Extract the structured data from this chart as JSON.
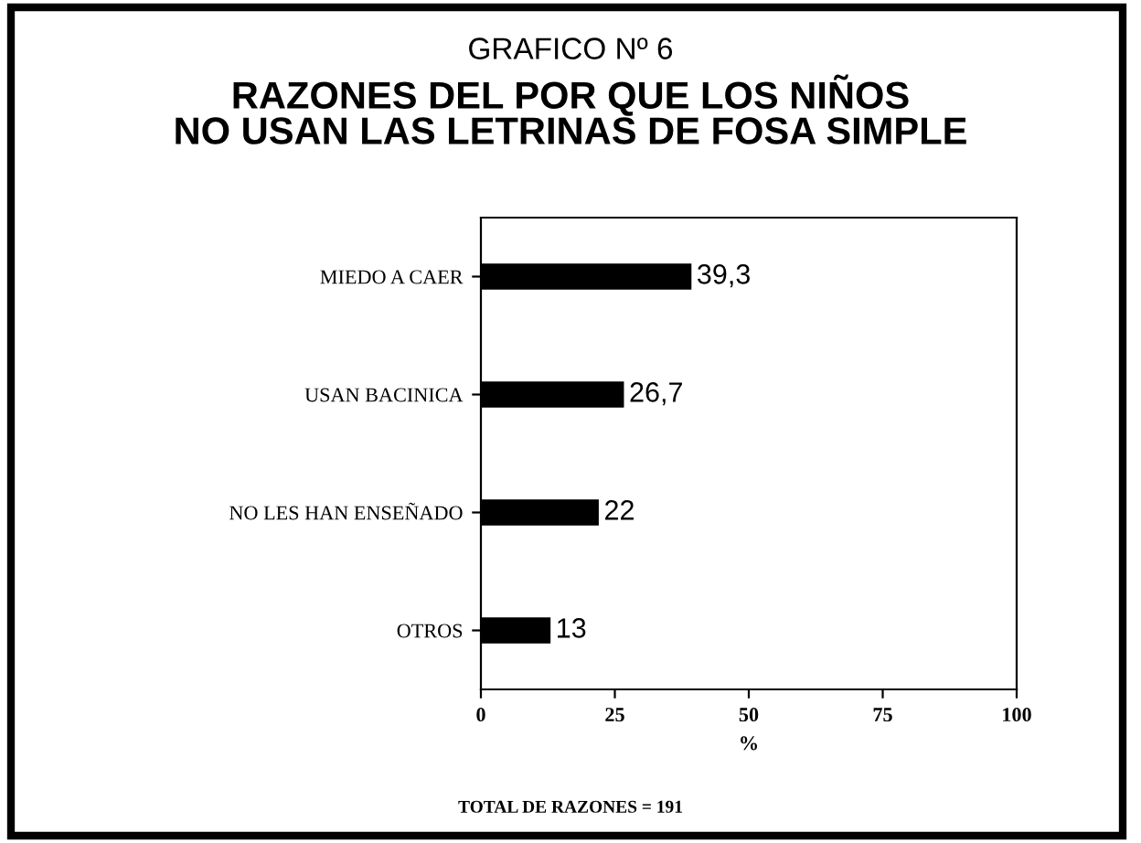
{
  "chart_data": {
    "type": "bar",
    "orientation": "horizontal",
    "title": "GRAFICO Nº 6",
    "subtitle": "RAZONES DEL POR QUE LOS NIÑOS\nNO USAN LAS LETRINAS DE FOSA SIMPLE",
    "categories": [
      "MIEDO A CAER",
      "USAN BACINICA",
      "NO LES HAN ENSEÑADO",
      "OTROS"
    ],
    "values": [
      39.3,
      26.7,
      22,
      13
    ],
    "value_labels": [
      "39,3",
      "26,7",
      "22",
      "13"
    ],
    "color": "#000000",
    "xlim": [
      0,
      100
    ],
    "xticks": [
      0,
      25,
      50,
      75,
      100
    ],
    "xlabel": "%",
    "grid": false,
    "annotations": [
      "TOTAL DE RAZONES = 191"
    ]
  }
}
